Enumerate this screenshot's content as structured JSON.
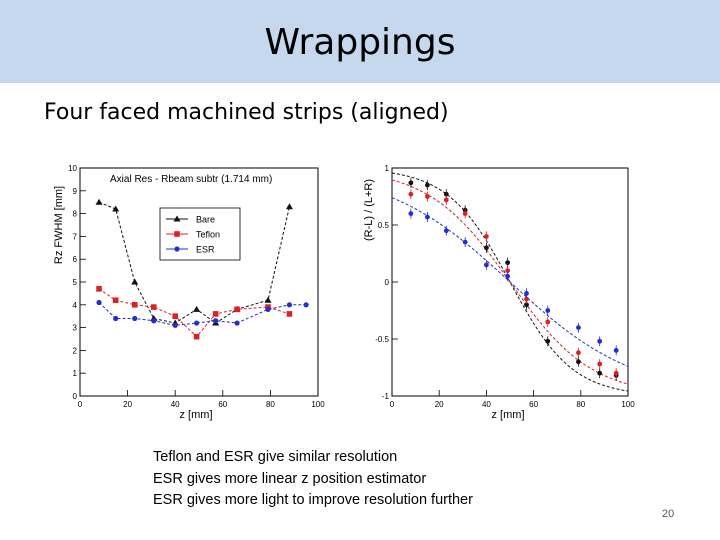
{
  "slide": {
    "title": "Wrappings",
    "subtitle": "Four faced machined strips (aligned)",
    "bullets": [
      "Teflon and ESR give similar resolution",
      "ESR gives more linear z position estimator",
      "ESR gives more light to improve resolution further"
    ],
    "page_number": "20"
  },
  "colors": {
    "header_bg": "#c5d8ee",
    "bare": "#111111",
    "teflon": "#e02020",
    "esr": "#2030d0"
  },
  "chart_data": [
    {
      "type": "line",
      "title": "Axial Res - Rbeam subtr (1.714 mm)",
      "xlabel": "z [mm]",
      "ylabel": "Rz FWHM [mm]",
      "xlim": [
        0,
        100
      ],
      "ylim": [
        0,
        10
      ],
      "xticks": [
        "0",
        "20",
        "40",
        "60",
        "80",
        "100"
      ],
      "yticks": [
        "0",
        "1",
        "2",
        "3",
        "4",
        "5",
        "6",
        "7",
        "8",
        "9",
        "10"
      ],
      "legend": "top-left inside",
      "series": [
        {
          "name": "Bare",
          "color": "#111111",
          "marker": "triangle",
          "x": [
            8,
            15,
            23,
            31,
            40,
            49,
            57,
            66,
            79,
            88
          ],
          "y": [
            8.5,
            8.2,
            5.0,
            3.4,
            3.2,
            3.8,
            3.2,
            3.8,
            4.2,
            8.3
          ]
        },
        {
          "name": "Teflon",
          "color": "#e02020",
          "marker": "square",
          "x": [
            8,
            15,
            23,
            31,
            40,
            49,
            57,
            66,
            79,
            88
          ],
          "y": [
            4.7,
            4.2,
            4.0,
            3.9,
            3.5,
            2.6,
            3.6,
            3.8,
            3.9,
            3.6
          ]
        },
        {
          "name": "ESR",
          "color": "#2030d0",
          "marker": "circle",
          "x": [
            8,
            15,
            23,
            31,
            40,
            49,
            57,
            66,
            79,
            88,
            95
          ],
          "y": [
            4.1,
            3.4,
            3.4,
            3.3,
            3.1,
            3.2,
            3.3,
            3.2,
            3.8,
            4.0,
            4.0
          ]
        }
      ]
    },
    {
      "type": "scatter",
      "title": "",
      "xlabel": "z [mm]",
      "ylabel": "(R-L) / (L+R)",
      "xlim": [
        0,
        100
      ],
      "ylim": [
        -1,
        1
      ],
      "xticks": [
        "0",
        "20",
        "40",
        "60",
        "80",
        "100"
      ],
      "yticks": [
        "-1",
        "-0.5",
        "0",
        "0.5",
        "1"
      ],
      "series": [
        {
          "name": "Bare",
          "color": "#111111",
          "x": [
            8,
            15,
            23,
            31,
            40,
            49,
            57,
            66,
            79,
            88,
            95
          ],
          "y": [
            0.87,
            0.85,
            0.77,
            0.63,
            0.3,
            0.17,
            -0.2,
            -0.52,
            -0.7,
            -0.8,
            -0.82
          ]
        },
        {
          "name": "Teflon",
          "color": "#e02020",
          "x": [
            8,
            15,
            23,
            31,
            40,
            49,
            57,
            66,
            79,
            88,
            95
          ],
          "y": [
            0.77,
            0.75,
            0.72,
            0.6,
            0.4,
            0.1,
            -0.15,
            -0.35,
            -0.62,
            -0.72,
            -0.8
          ]
        },
        {
          "name": "ESR",
          "color": "#2030d0",
          "x": [
            8,
            15,
            23,
            31,
            40,
            49,
            57,
            66,
            79,
            88,
            95
          ],
          "y": [
            0.6,
            0.57,
            0.45,
            0.35,
            0.15,
            0.05,
            -0.1,
            -0.25,
            -0.4,
            -0.52,
            -0.6
          ]
        }
      ],
      "fits": [
        {
          "series": "Bare",
          "color": "#111111",
          "slope": 3.8
        },
        {
          "series": "Teflon",
          "color": "#e02020",
          "slope": 2.9
        },
        {
          "series": "ESR",
          "color": "#2030d0",
          "slope": 1.9
        }
      ]
    }
  ]
}
